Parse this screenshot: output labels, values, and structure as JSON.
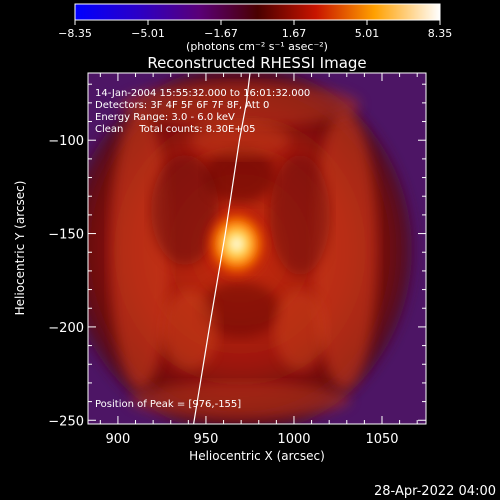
{
  "chart_data": {
    "type": "heatmap",
    "title": "Reconstructed RHESSI Image",
    "xlabel": "Heliocentric X (arcsec)",
    "ylabel": "Heliocentric Y (arcsec)",
    "xlim": [
      883,
      1075
    ],
    "ylim": [
      -252,
      -64
    ],
    "x_ticks": [
      900,
      950,
      1000,
      1050
    ],
    "y_ticks": [
      -250,
      -200,
      -150,
      -100
    ],
    "colorbar": {
      "label": "(photons cm⁻² s⁻¹ asec⁻²)",
      "range": [
        -8.35,
        8.35
      ],
      "ticks": [
        -8.35,
        -5.01,
        -1.67,
        1.67,
        5.01,
        8.35
      ]
    },
    "annotations": [
      "14-Jan-2004 15:55:32.000 to 16:01:32.000",
      "Detectors: 3F 4F 5F 6F 7F 8F, Att 0",
      "Energy Range: 3.0 - 6.0 keV",
      "Clean     Total counts: 8.30E+05"
    ],
    "peak_label": "Position of Peak = [976,-155]",
    "peak": {
      "x": 976,
      "y": -155,
      "value": 8.35
    },
    "limb_curve": [
      [
        943,
        -252
      ],
      [
        952,
        -200
      ],
      [
        961,
        -150
      ],
      [
        969,
        -100
      ],
      [
        973,
        -80
      ],
      [
        975,
        -64
      ]
    ],
    "timestamp": "28-Apr-2022 04:00"
  }
}
